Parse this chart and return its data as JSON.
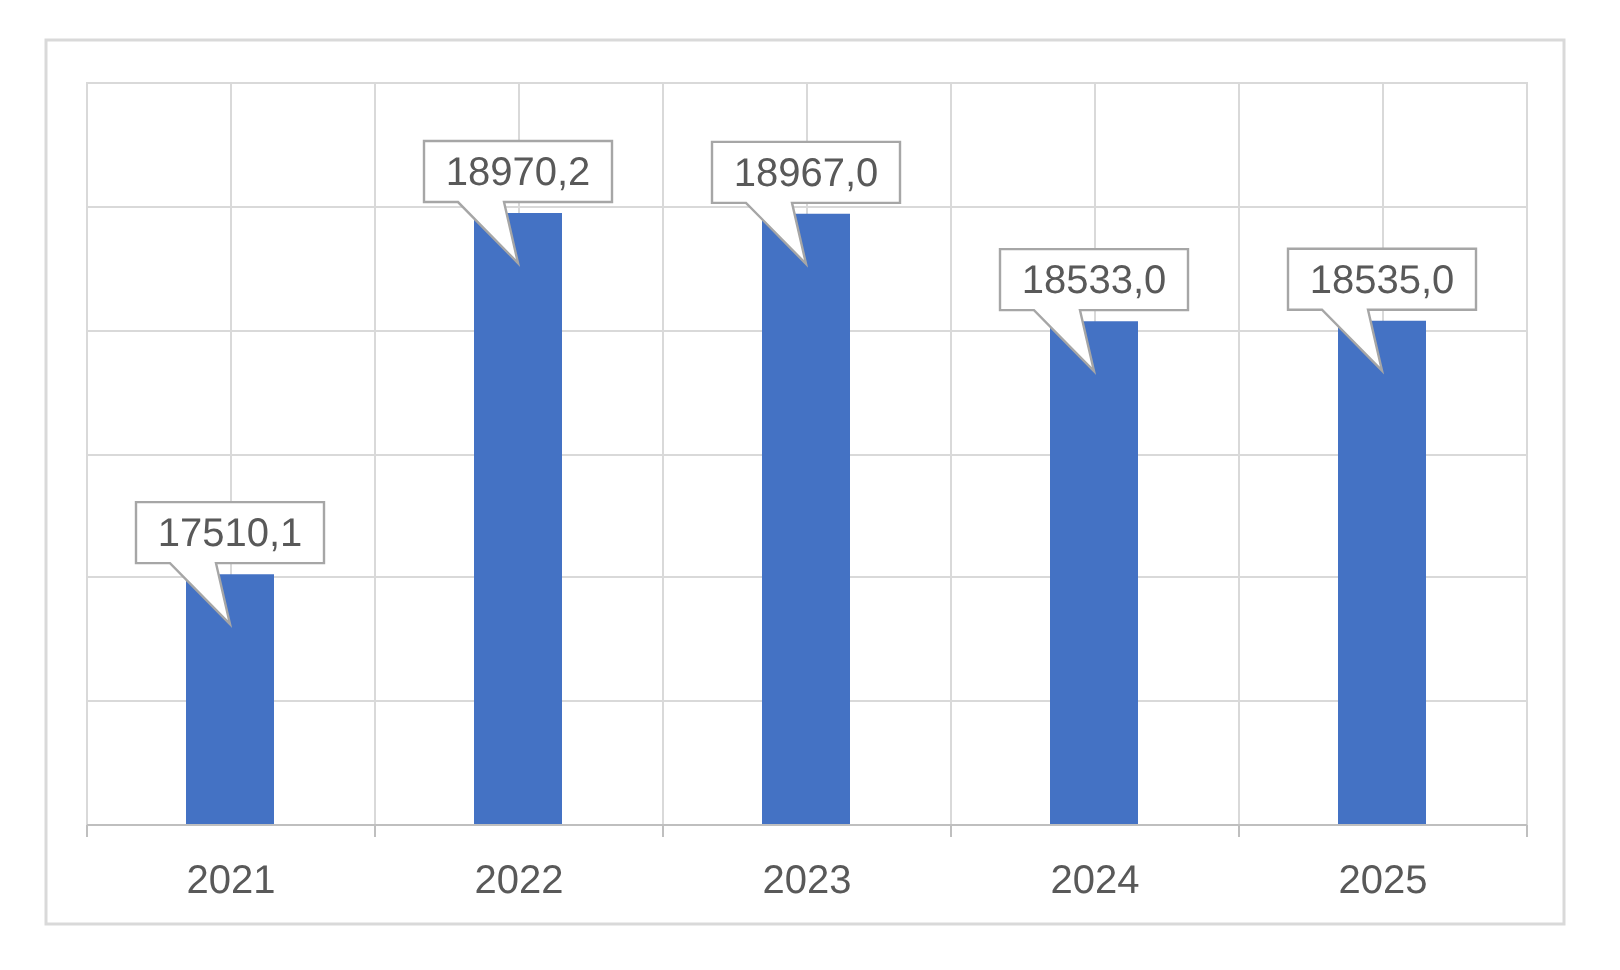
{
  "chart_data": {
    "type": "bar",
    "categories": [
      "2021",
      "2022",
      "2023",
      "2024",
      "2025"
    ],
    "values": [
      17510.1,
      18970.2,
      18967.0,
      18533.0,
      18535.0
    ],
    "value_labels": [
      "17510,1",
      "18970,2",
      "18967,0",
      "18533,0",
      "18535,0"
    ],
    "color": "#4472c4",
    "ylim": [
      16500,
      19500
    ],
    "yticks": [
      {
        "value": 16500,
        "label": null
      },
      {
        "value": 17000,
        "label": null
      },
      {
        "value": 17500,
        "label": null
      },
      {
        "value": 18000,
        "label": null
      },
      {
        "value": 18500,
        "label": null
      },
      {
        "value": 19000,
        "label": null
      },
      {
        "value": 19500,
        "label": null
      }
    ],
    "grid": true,
    "tick_labels": "x"
  }
}
